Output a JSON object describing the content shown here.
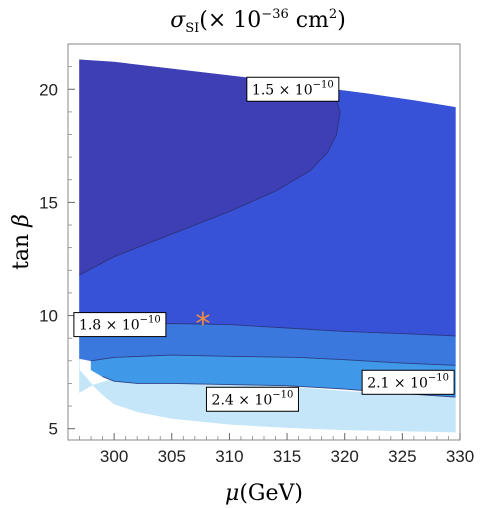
{
  "chart_data": {
    "type": "contour",
    "title": "σSI(×10−36 cm2)",
    "title_parts": {
      "symbol": "σ",
      "subscript": "SI",
      "open": "(",
      "times": "× 10",
      "exponent": "−36",
      "unit": " cm",
      "unit_exp": "2",
      "close": ")"
    },
    "xlabel": "μ(GeV)",
    "xlabel_parts": {
      "symbol": "μ",
      "unit": "(GeV)"
    },
    "ylabel": "tan β",
    "ylabel_parts": {
      "fn": "tan ",
      "symbol": "β"
    },
    "xlim": [
      296,
      330
    ],
    "ylim": [
      4.5,
      22
    ],
    "x_ticks": [
      300,
      305,
      310,
      315,
      320,
      325,
      330
    ],
    "y_ticks": [
      5,
      10,
      15,
      20
    ],
    "x_tick_labels": [
      "300",
      "305",
      "310",
      "315",
      "320",
      "325",
      "330"
    ],
    "y_tick_labels": [
      "5",
      "10",
      "15",
      "20"
    ],
    "regions": [
      {
        "name": "region-lightest",
        "color": "#c4e6f8",
        "boundary": [
          [
            297,
            9.3
          ],
          [
            297,
            7.6
          ],
          [
            298,
            7.0
          ],
          [
            299,
            6.5
          ],
          [
            300,
            6.1
          ],
          [
            302,
            5.75
          ],
          [
            305,
            5.45
          ],
          [
            310,
            5.2
          ],
          [
            315,
            5.05
          ],
          [
            320,
            4.95
          ],
          [
            325,
            4.9
          ],
          [
            329.6,
            4.85
          ],
          [
            329.6,
            6.4
          ],
          [
            325,
            6.5
          ],
          [
            320,
            6.65
          ],
          [
            315,
            6.85
          ],
          [
            310,
            7.05
          ],
          [
            305,
            7.2
          ],
          [
            302,
            7.25
          ],
          [
            300,
            7.2
          ],
          [
            298,
            6.9
          ],
          [
            297,
            6.6
          ]
        ]
      },
      {
        "name": "region-light",
        "color": "#3f98e8",
        "boundary": [
          [
            298,
            7.6
          ],
          [
            299,
            7.3
          ],
          [
            300,
            7.1
          ],
          [
            302,
            7.0
          ],
          [
            305,
            7.0
          ],
          [
            310,
            6.95
          ],
          [
            315,
            6.9
          ],
          [
            320,
            6.75
          ],
          [
            325,
            6.55
          ],
          [
            329.6,
            6.4
          ],
          [
            329.6,
            7.8
          ],
          [
            325,
            7.9
          ],
          [
            320,
            8.05
          ],
          [
            316,
            8.15
          ],
          [
            310,
            8.2
          ],
          [
            305,
            8.25
          ],
          [
            300,
            8.15
          ],
          [
            298,
            8.0
          ]
        ]
      },
      {
        "name": "region-mid",
        "color": "#3a78de",
        "boundary": [
          [
            297,
            9.3
          ],
          [
            297,
            8.1
          ],
          [
            298,
            8.0
          ],
          [
            300,
            8.15
          ],
          [
            305,
            8.25
          ],
          [
            310,
            8.2
          ],
          [
            316,
            8.15
          ],
          [
            320,
            8.05
          ],
          [
            325,
            7.9
          ],
          [
            329.6,
            7.8
          ],
          [
            329.6,
            9.1
          ],
          [
            325,
            9.2
          ],
          [
            320,
            9.3
          ],
          [
            315,
            9.45
          ],
          [
            310,
            9.6
          ],
          [
            305,
            9.65
          ],
          [
            300,
            9.55
          ],
          [
            297,
            9.5
          ]
        ]
      },
      {
        "name": "region-dark",
        "color": "#3752d6",
        "boundary": [
          [
            297,
            9.6
          ],
          [
            300,
            9.55
          ],
          [
            305,
            9.65
          ],
          [
            310,
            9.6
          ],
          [
            315,
            9.45
          ],
          [
            320,
            9.3
          ],
          [
            325,
            9.2
          ],
          [
            329.6,
            9.1
          ],
          [
            329.6,
            19.2
          ],
          [
            326,
            19.5
          ],
          [
            322,
            19.8
          ],
          [
            319,
            20.0
          ],
          [
            319.6,
            19.0
          ],
          [
            319.3,
            18.0
          ],
          [
            318.5,
            17.2
          ],
          [
            317,
            16.4
          ],
          [
            314,
            15.5
          ],
          [
            310,
            14.6
          ],
          [
            305,
            13.6
          ],
          [
            300,
            12.6
          ],
          [
            297,
            11.8
          ]
        ]
      },
      {
        "name": "region-darkest",
        "color": "#3e3fb4",
        "boundary": [
          [
            297,
            11.8
          ],
          [
            300,
            12.6
          ],
          [
            305,
            13.6
          ],
          [
            310,
            14.6
          ],
          [
            314,
            15.5
          ],
          [
            317,
            16.4
          ],
          [
            318.5,
            17.2
          ],
          [
            319.3,
            18.0
          ],
          [
            319.6,
            19.0
          ],
          [
            319,
            20.0
          ],
          [
            315,
            20.3
          ],
          [
            310,
            20.6
          ],
          [
            305,
            20.9
          ],
          [
            300,
            21.2
          ],
          [
            297,
            21.3
          ]
        ]
      }
    ],
    "contour_lines": [
      {
        "name": "contour-1.5e-10",
        "points": [
          [
            297,
            11.8
          ],
          [
            300,
            12.6
          ],
          [
            305,
            13.6
          ],
          [
            310,
            14.6
          ],
          [
            314,
            15.5
          ],
          [
            317,
            16.4
          ],
          [
            318.5,
            17.2
          ],
          [
            319.3,
            18.0
          ],
          [
            319.6,
            19.0
          ],
          [
            319,
            20.0
          ]
        ]
      },
      {
        "name": "contour-1.8e-10",
        "points": [
          [
            297,
            9.5
          ],
          [
            300,
            9.55
          ],
          [
            305,
            9.65
          ],
          [
            310,
            9.6
          ],
          [
            315,
            9.45
          ],
          [
            320,
            9.3
          ],
          [
            325,
            9.2
          ],
          [
            329.6,
            9.1
          ]
        ]
      },
      {
        "name": "contour-2.1e-10",
        "points": [
          [
            298,
            8.0
          ],
          [
            300,
            8.15
          ],
          [
            305,
            8.25
          ],
          [
            310,
            8.2
          ],
          [
            316,
            8.15
          ],
          [
            320,
            8.05
          ],
          [
            325,
            7.9
          ],
          [
            329.6,
            7.8
          ]
        ]
      },
      {
        "name": "contour-2.4e-10",
        "points": [
          [
            299,
            7.3
          ],
          [
            300,
            7.1
          ],
          [
            302,
            7.0
          ],
          [
            305,
            7.0
          ],
          [
            310,
            6.95
          ],
          [
            315,
            6.9
          ],
          [
            320,
            6.75
          ],
          [
            325,
            6.55
          ],
          [
            329.6,
            6.4
          ]
        ]
      }
    ],
    "contour_labels": [
      {
        "mantissa": "1.5",
        "times": " × 10",
        "exp": "−10",
        "x": 315.5,
        "y": 20.0
      },
      {
        "mantissa": "1.8",
        "times": " × 10",
        "exp": "−10",
        "x": 300.5,
        "y": 9.6
      },
      {
        "mantissa": "2.1",
        "times": " × 10",
        "exp": "−10",
        "x": 325.5,
        "y": 7.05
      },
      {
        "mantissa": "2.4",
        "times": " × 10",
        "exp": "−10",
        "x": 312.0,
        "y": 6.3
      }
    ],
    "marker": {
      "symbol": "*",
      "x": 307.7,
      "y": 9.8,
      "color": "#f08a3c"
    },
    "grid": false,
    "colors": {
      "darkest": "#3e3fb4",
      "dark": "#3752d6",
      "mid": "#3a78de",
      "light": "#3f98e8",
      "lightest": "#c4e6f8",
      "marker": "#f08a3c"
    }
  }
}
